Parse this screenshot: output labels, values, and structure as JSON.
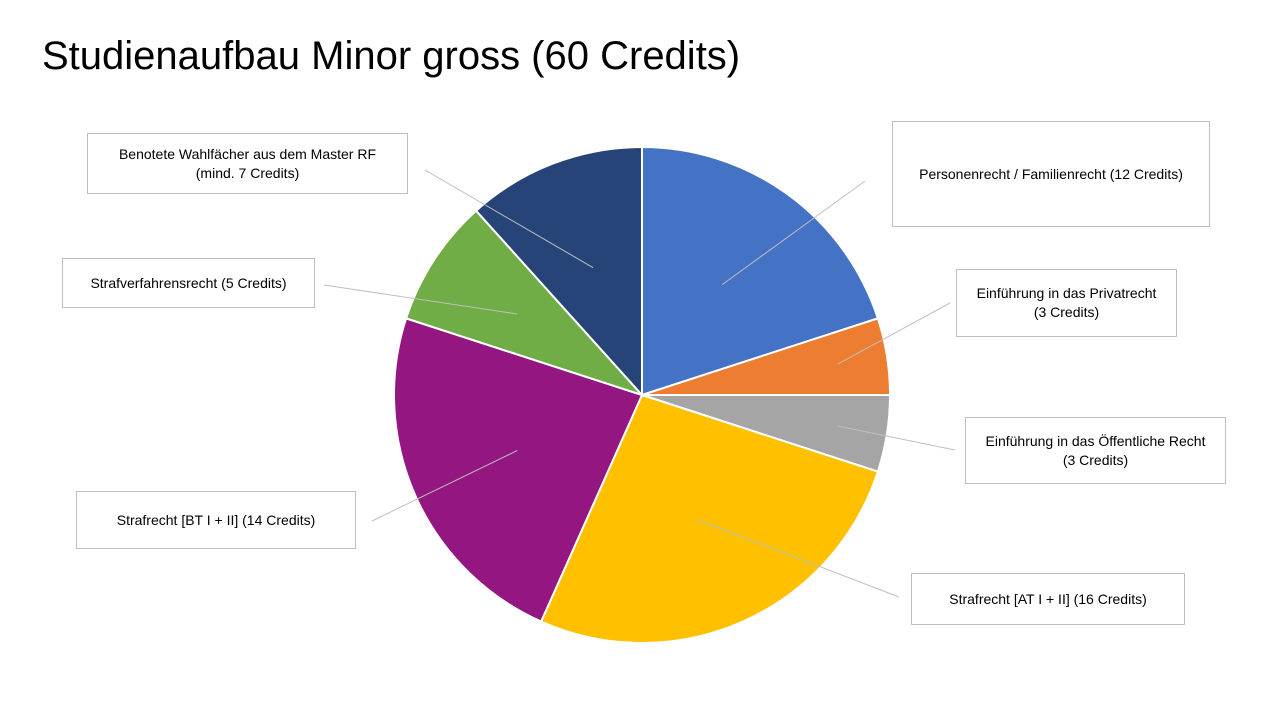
{
  "title": "Studienaufbau Minor gross (60 Credits)",
  "chart_data": {
    "type": "pie",
    "title": "Studienaufbau Minor gross (60 Credits)",
    "slices": [
      {
        "label": [
          "Personenrecht / Familienrecht (12 Credits)"
        ],
        "value": 12,
        "color": "#4472C4"
      },
      {
        "label": [
          "Einführung in das Privatrecht",
          "(3 Credits)"
        ],
        "value": 3,
        "color": "#ED7D31"
      },
      {
        "label": [
          "Einführung in das Öffentliche Recht",
          "(3 Credits)"
        ],
        "value": 3,
        "color": "#A5A5A5"
      },
      {
        "label": [
          "Strafrecht [AT I + II] (16 Credits)"
        ],
        "value": 16,
        "color": "#FFC000"
      },
      {
        "label": [
          "Strafrecht [BT I + II] (14 Credits)"
        ],
        "value": 14,
        "color": "#941680"
      },
      {
        "label": [
          "Strafverfahrensrecht (5 Credits)"
        ],
        "value": 5,
        "color": "#70AD47"
      },
      {
        "label": [
          "Benotete Wahlfächer aus dem Master RF",
          "(mind. 7 Credits)"
        ],
        "value": 7,
        "color": "#264478"
      }
    ]
  }
}
